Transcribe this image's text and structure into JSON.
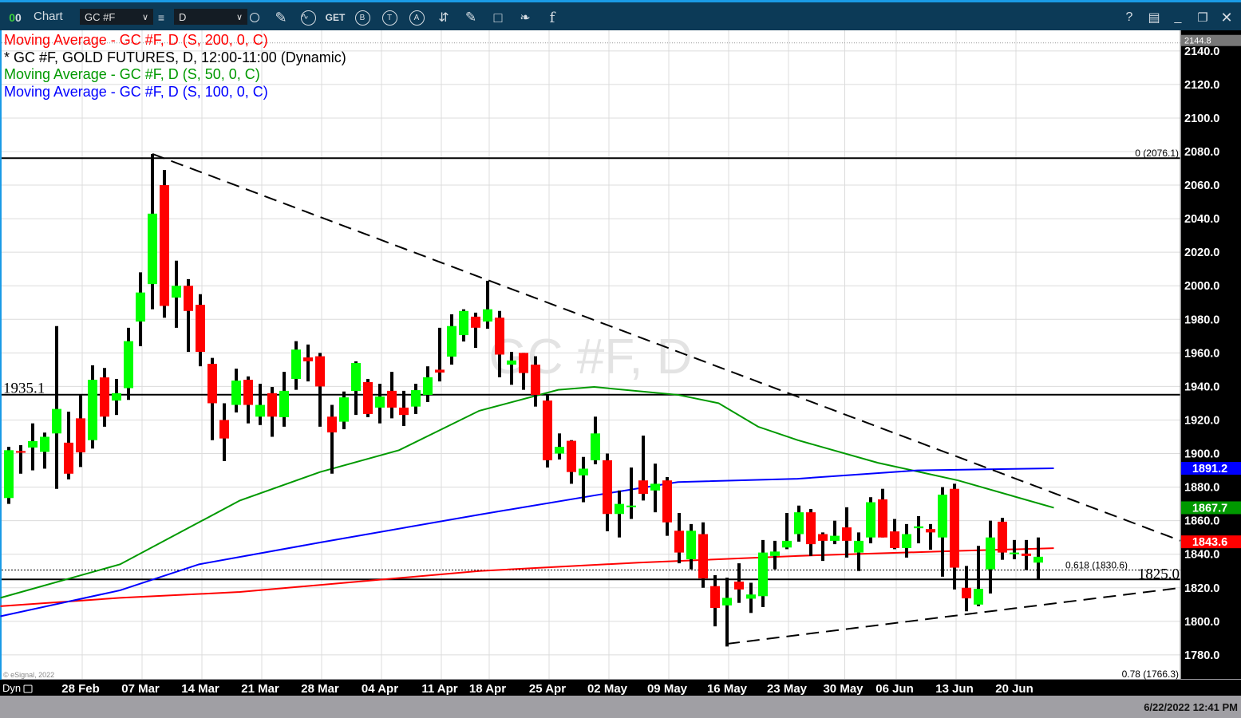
{
  "toolbar": {
    "title": "Chart",
    "symbol": "GC #F",
    "interval": "D",
    "get_label": "GET",
    "icons": [
      "link-toggle-icon",
      "list-icon",
      "clock-icon",
      "pencil-icon",
      "study-icon",
      "get-icon",
      "buy-icon",
      "trade-icon",
      "alert-icon",
      "swap-icon",
      "note-icon",
      "comment-icon",
      "twitter-icon",
      "facebook-icon",
      "help-icon",
      "layout-icon",
      "minimize-icon",
      "restore-icon",
      "close-icon"
    ],
    "help": "?",
    "b": "B",
    "t": "T",
    "a": "A"
  },
  "legend": [
    {
      "text": "Moving Average - GC #F, D (S, 200, 0, C)",
      "color": "#ff0000"
    },
    {
      "text": "* GC #F, GOLD FUTURES, D, 12:00-11:00 (Dynamic)",
      "color": "#000000"
    },
    {
      "text": "Moving Average - GC #F, D (S, 50, 0, C)",
      "color": "#009900"
    },
    {
      "text": "Moving Average - GC #F, D (S, 100, 0, C)",
      "color": "#0000ff"
    }
  ],
  "watermark": "GC #F, D",
  "copyright": "© eSignal, 2022",
  "bottom": {
    "dyn": "Dyn",
    "timestamp": "6/22/2022 12:41 PM"
  },
  "chart_data": {
    "type": "candlestick",
    "ylim": [
      1766,
      2152
    ],
    "yticks": [
      1780,
      1800,
      1820,
      1840,
      1860,
      1880,
      1900,
      1920,
      1940,
      1960,
      1980,
      2000,
      2020,
      2040,
      2060,
      2080,
      2100,
      2120,
      2140
    ],
    "grid": true,
    "up_color": "#00ff00",
    "down_color": "#ff0000",
    "xticks": [
      {
        "label": "28 Feb",
        "index": 6
      },
      {
        "label": "07 Mar",
        "index": 11
      },
      {
        "label": "14 Mar",
        "index": 16
      },
      {
        "label": "21 Mar",
        "index": 21
      },
      {
        "label": "28 Mar",
        "index": 26
      },
      {
        "label": "04 Apr",
        "index": 31
      },
      {
        "label": "11 Apr",
        "index": 36
      },
      {
        "label": "18 Apr",
        "index": 40
      },
      {
        "label": "25 Apr",
        "index": 45
      },
      {
        "label": "02 May",
        "index": 50
      },
      {
        "label": "09 May",
        "index": 55
      },
      {
        "label": "16 May",
        "index": 60
      },
      {
        "label": "23 May",
        "index": 65
      },
      {
        "label": "30 May",
        "index": 69.7
      },
      {
        "label": "06 Jun",
        "index": 74
      },
      {
        "label": "13 Jun",
        "index": 79
      },
      {
        "label": "20 Jun",
        "index": 84
      }
    ],
    "ohlc": [
      [
        1873.5,
        1904,
        1870,
        1902
      ],
      [
        1901.5,
        1905,
        1888,
        1900.5
      ],
      [
        1903.6,
        1918,
        1890,
        1907.4
      ],
      [
        1901,
        1912.5,
        1891,
        1910
      ],
      [
        1912,
        1976,
        1879,
        1926.6
      ],
      [
        1906.5,
        1925,
        1884.6,
        1888
      ],
      [
        1921,
        1935,
        1892,
        1900.7
      ],
      [
        1908,
        1952.6,
        1903,
        1944
      ],
      [
        1945.4,
        1951,
        1916,
        1922
      ],
      [
        1931.6,
        1944.5,
        1923,
        1936
      ],
      [
        1939,
        1975,
        1932,
        1967
      ],
      [
        1978.7,
        2008,
        1964,
        1996
      ],
      [
        2001,
        2078.6,
        1986,
        2043
      ],
      [
        2060,
        2069,
        1981,
        1988
      ],
      [
        1993,
        2015,
        1975,
        2000
      ],
      [
        2000,
        2004,
        1960.6,
        1985
      ],
      [
        1988.7,
        1995,
        1952,
        1960.6
      ],
      [
        1953.5,
        1957,
        1908,
        1930
      ],
      [
        1920,
        1930,
        1895.5,
        1909
      ],
      [
        1929,
        1950.6,
        1924.5,
        1943.5
      ],
      [
        1944,
        1946,
        1918,
        1929
      ],
      [
        1922,
        1941.6,
        1917,
        1929
      ],
      [
        1936,
        1939.7,
        1910,
        1922
      ],
      [
        1921.7,
        1948.7,
        1916,
        1937.4
      ],
      [
        1944.5,
        1967,
        1938,
        1962
      ],
      [
        1957.3,
        1965,
        1943,
        1955
      ],
      [
        1958,
        1960,
        1916,
        1940
      ],
      [
        1922,
        1929,
        1888,
        1912.6
      ],
      [
        1919,
        1937,
        1914.5,
        1933.5
      ],
      [
        1937.3,
        1955,
        1923,
        1954
      ],
      [
        1942.6,
        1944.5,
        1921.7,
        1923.6
      ],
      [
        1927.4,
        1941.6,
        1918,
        1934
      ],
      [
        1937.4,
        1948.7,
        1921,
        1927.4
      ],
      [
        1927.4,
        1937.4,
        1916.4,
        1923
      ],
      [
        1928,
        1941.6,
        1923.6,
        1937.8
      ],
      [
        1935,
        1952,
        1930.7,
        1945.5
      ],
      [
        1950,
        1975,
        1943,
        1948.3
      ],
      [
        1957.8,
        1983,
        1953,
        1976
      ],
      [
        1970.6,
        1986,
        1966.8,
        1985
      ],
      [
        1981.6,
        1984,
        1963,
        1975
      ],
      [
        1978.7,
        2003,
        1974.4,
        1986
      ],
      [
        1981,
        1985,
        1945.5,
        1959
      ],
      [
        1953,
        1960.6,
        1941,
        1955.5
      ],
      [
        1960,
        1960,
        1938,
        1948
      ],
      [
        1953,
        1958,
        1928,
        1935
      ],
      [
        1931.6,
        1935,
        1891.7,
        1896
      ],
      [
        1900,
        1912,
        1896.5,
        1904
      ],
      [
        1907.6,
        1908,
        1882,
        1889
      ],
      [
        1887,
        1898,
        1871,
        1891
      ],
      [
        1896,
        1922,
        1893.6,
        1912
      ],
      [
        1896,
        1900,
        1853.7,
        1864
      ],
      [
        1864,
        1878,
        1850,
        1870
      ],
      [
        1868.5,
        1891.7,
        1861,
        1869
      ],
      [
        1884,
        1910.7,
        1872,
        1876
      ],
      [
        1878,
        1894,
        1865,
        1882
      ],
      [
        1884,
        1886,
        1851,
        1859
      ],
      [
        1854,
        1864.6,
        1834.6,
        1841
      ],
      [
        1837,
        1858,
        1831,
        1854
      ],
      [
        1852,
        1859,
        1820,
        1825.6
      ],
      [
        1821,
        1827.5,
        1797,
        1808
      ],
      [
        1809.5,
        1826,
        1785,
        1814
      ],
      [
        1823.7,
        1834.6,
        1811,
        1819
      ],
      [
        1813.5,
        1823,
        1805,
        1816
      ],
      [
        1815,
        1848.5,
        1808.5,
        1841
      ],
      [
        1839,
        1848,
        1831,
        1841.6
      ],
      [
        1844,
        1864.6,
        1843,
        1848
      ],
      [
        1852,
        1869,
        1847.5,
        1865
      ],
      [
        1865,
        1867,
        1839,
        1846
      ],
      [
        1852,
        1853,
        1836,
        1848
      ],
      [
        1848,
        1860,
        1846,
        1851
      ],
      [
        1856,
        1868,
        1838,
        1848
      ],
      [
        1841,
        1853,
        1830,
        1848
      ],
      [
        1850,
        1874,
        1846.5,
        1871
      ],
      [
        1872.7,
        1879,
        1850,
        1850
      ],
      [
        1853.6,
        1861,
        1843,
        1843.7
      ],
      [
        1843.7,
        1858,
        1838,
        1852
      ],
      [
        1855.5,
        1862.7,
        1846.5,
        1856.6
      ],
      [
        1855,
        1858,
        1842.7,
        1853
      ],
      [
        1850,
        1880,
        1826.6,
        1875.5
      ],
      [
        1879,
        1882,
        1819,
        1832
      ],
      [
        1820,
        1833,
        1806,
        1813.7
      ],
      [
        1810,
        1845,
        1809,
        1819.4
      ],
      [
        1831,
        1860,
        1816.6,
        1850
      ],
      [
        1859.4,
        1861.7,
        1836.7,
        1841
      ],
      [
        1840.6,
        1848.5,
        1837,
        1841
      ],
      [
        1840.4,
        1848.5,
        1830.6,
        1839
      ],
      [
        1835,
        1850,
        1825,
        1838.5
      ]
    ],
    "moving_averages": [
      {
        "name": "Moving Average - GC #F, D (S, 200, 0, C)",
        "color": "#ff0000",
        "last": "1843.6",
        "points": [
          [
            -0.7,
            1809
          ],
          [
            9.3,
            1814
          ],
          [
            19.3,
            1817.5
          ],
          [
            39.3,
            1830
          ],
          [
            52.6,
            1835
          ],
          [
            65.9,
            1839
          ],
          [
            79.3,
            1842
          ],
          [
            87.3,
            1843.6
          ]
        ]
      },
      {
        "name": "Moving Average - GC #F, D (S, 50, 0, C)",
        "color": "#009900",
        "last": "1867.7",
        "points": [
          [
            -0.7,
            1814
          ],
          [
            9.3,
            1834
          ],
          [
            19.3,
            1872
          ],
          [
            26,
            1889
          ],
          [
            32.6,
            1902
          ],
          [
            39.3,
            1925.5
          ],
          [
            45.9,
            1938
          ],
          [
            48.9,
            1939.7
          ],
          [
            55.9,
            1935
          ],
          [
            59.3,
            1930
          ],
          [
            62.6,
            1916
          ],
          [
            65.9,
            1908
          ],
          [
            72.6,
            1894.5
          ],
          [
            79.3,
            1884
          ],
          [
            87.3,
            1867.7
          ]
        ]
      },
      {
        "name": "Moving Average - GC #F, D (S, 100, 0, C)",
        "color": "#0000ff",
        "last": "1891.2",
        "points": [
          [
            -0.7,
            1803
          ],
          [
            9.3,
            1818.5
          ],
          [
            15.9,
            1834
          ],
          [
            26,
            1847
          ],
          [
            39.3,
            1863.6
          ],
          [
            49.3,
            1875.5
          ],
          [
            55.9,
            1883
          ],
          [
            65.9,
            1885
          ],
          [
            75.9,
            1890
          ],
          [
            87.3,
            1891.2
          ]
        ]
      }
    ],
    "horizontal_lines": [
      {
        "price": 2076.1,
        "label": "0 (2076.1)",
        "style": "solid"
      },
      {
        "price": 1935.1,
        "label": "1935.1",
        "style": "solid"
      },
      {
        "price": 1825.0,
        "label": "1825.0",
        "style": "solid"
      },
      {
        "price": 1830.6,
        "label": "0.618 (1830.6)",
        "style": "dotted"
      }
    ],
    "fib_bottom_label": "0.78 (1766.3)",
    "trendlines": [
      {
        "from": [
          12,
          2078.6
        ],
        "to": [
          97.9,
          1848
        ]
      },
      {
        "from": [
          60,
          1786.6
        ],
        "to": [
          97.9,
          1820
        ]
      }
    ],
    "crosshair_price": "2144.8"
  }
}
